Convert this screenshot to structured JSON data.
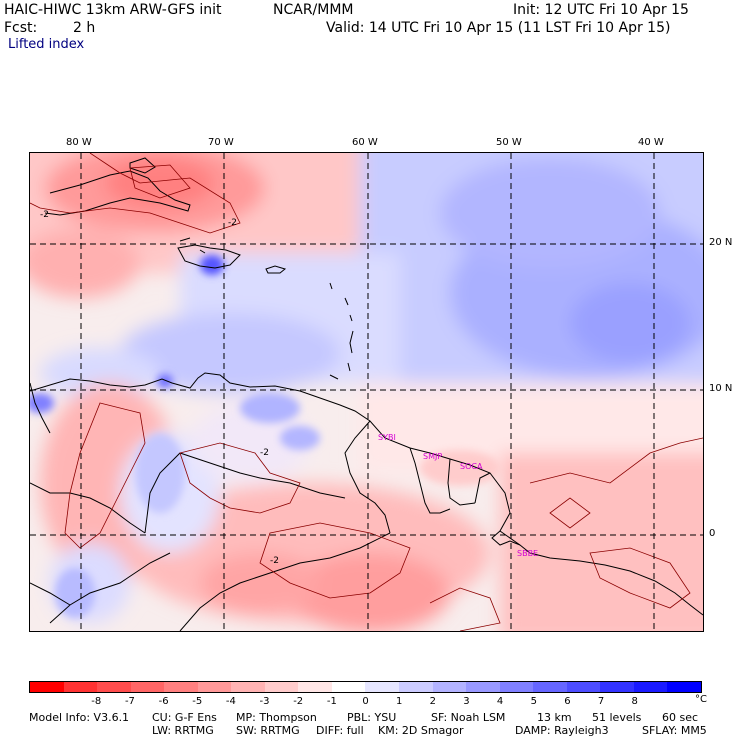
{
  "header": {
    "model": "HAIC-HIWC 13km ARW-GFS init",
    "org": "NCAR/MMM",
    "init": "Init: 12 UTC Fri 10 Apr 15",
    "fcst_label": "Fcst:",
    "fcst_value": "2 h",
    "valid": "Valid: 14 UTC Fri 10 Apr 15 (11 LST Fri 10 Apr 15)",
    "field": "Lifted index"
  },
  "map": {
    "lon_labels": [
      "80 W",
      "70 W",
      "60 W",
      "50 W",
      "40 W"
    ],
    "lat_labels": [
      "20 N",
      "10 N",
      "0"
    ],
    "stations": [
      "SYBI",
      "SMJP",
      "SOCA",
      "SBBE"
    ],
    "contour_labels": [
      "-2",
      "-2",
      "-2",
      "-2"
    ]
  },
  "colorbar": {
    "colors": [
      "#ff0000",
      "#ff3333",
      "#ff4d4d",
      "#ff6666",
      "#ff8080",
      "#ff9999",
      "#ffb3b3",
      "#ffcccc",
      "#ffe6e6",
      "#ffffff",
      "#e6e6ff",
      "#ccccff",
      "#b3b3ff",
      "#9999ff",
      "#8080ff",
      "#6666ff",
      "#4d4dff",
      "#3333ff",
      "#1a1aff",
      "#0000ff"
    ],
    "ticks": [
      "-8",
      "-7",
      "-6",
      "-5",
      "-4",
      "-3",
      "-2",
      "-1",
      "0",
      "1",
      "2",
      "3",
      "4",
      "5",
      "6",
      "7",
      "8"
    ],
    "unit": "°C"
  },
  "footer": {
    "line1": [
      "Model Info: V3.6.1",
      "CU: G-F Ens",
      "MP: Thompson",
      "PBL: YSU",
      "SF: Noah LSM",
      "13 km",
      "51 levels",
      "60 sec"
    ],
    "line2": [
      "LW: RRTMG",
      "SW: RRTMG",
      "DIFF: full",
      "KM: 2D Smagor",
      "DAMP: Rayleigh3",
      "SFLAY: MM5"
    ]
  }
}
